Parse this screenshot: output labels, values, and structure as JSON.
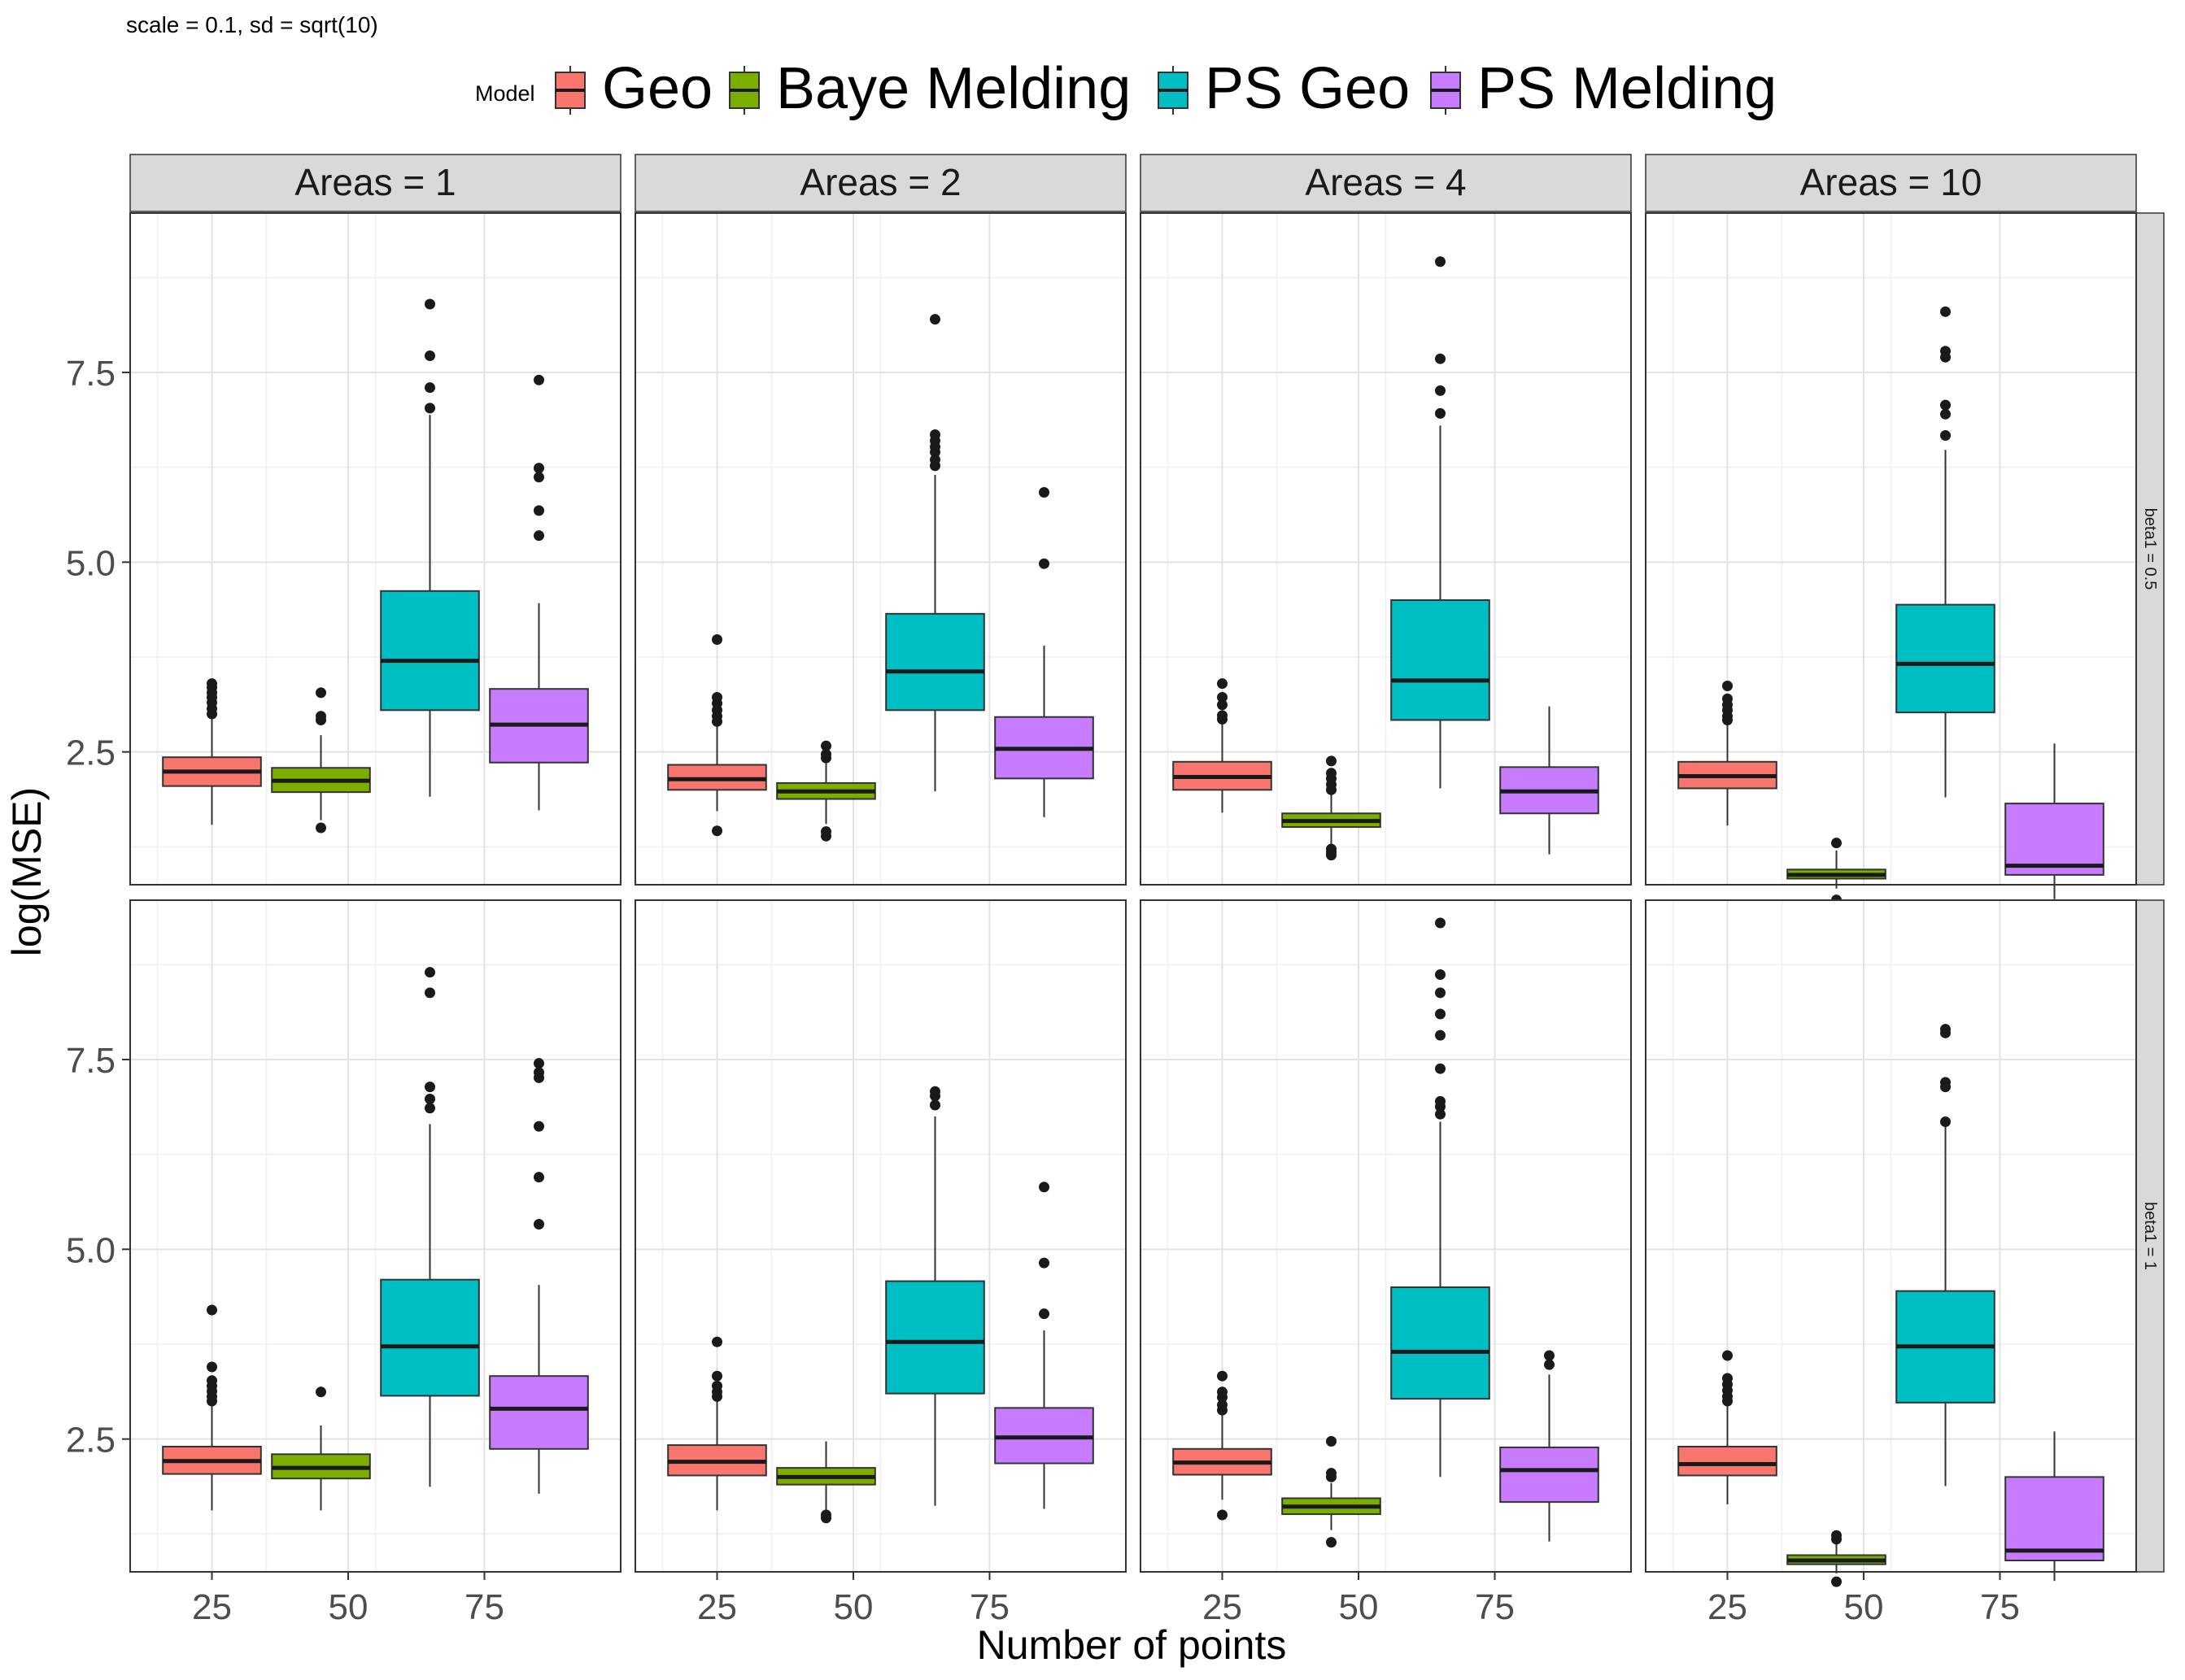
{
  "subtitle": "scale = 0.1, sd  = sqrt(10)",
  "legend": {
    "title": "Model",
    "entries": [
      {
        "label": "Geo",
        "color": "#F8766D"
      },
      {
        "label": "Baye Melding",
        "color": "#7CAE00"
      },
      {
        "label": "PS Geo",
        "color": "#00BFC4"
      },
      {
        "label": "PS Melding",
        "color": "#C77CFF"
      }
    ]
  },
  "chart_data": {
    "type": "boxplot",
    "subtitle": "scale = 0.1, sd  = sqrt(10)",
    "xlabel": "Number of points",
    "ylabel": "log(MSE)",
    "x_ticks": [
      "25",
      "50",
      "75"
    ],
    "y_ticks": [
      "2.5",
      "5.0",
      "7.5"
    ],
    "ylim": [
      0.75,
      9.6
    ],
    "xlim": [
      10,
      100
    ],
    "grid": true,
    "legend_position": "top",
    "box_positions": [
      25,
      45,
      65,
      85
    ],
    "facet_cols": [
      "Areas = 1",
      "Areas = 2",
      "Areas = 4",
      "Areas = 10"
    ],
    "facet_rows": [
      "beta1 = 0.5",
      "beta1 = 1"
    ],
    "series": [
      "Geo",
      "Baye Melding",
      "PS Geo",
      "PS Melding"
    ],
    "panels": [
      {
        "row": "beta1 = 0.5",
        "col": "Areas = 1",
        "boxes": [
          {
            "series": "Geo",
            "q1": 2.05,
            "median": 2.24,
            "q3": 2.43,
            "whisker_low": 1.54,
            "whisker_high": 2.96,
            "outliers": [
              3.0,
              3.07,
              3.15,
              3.22,
              3.28,
              3.35,
              3.4
            ]
          },
          {
            "series": "Baye Melding",
            "q1": 1.97,
            "median": 2.12,
            "q3": 2.29,
            "whisker_low": 1.6,
            "whisker_high": 2.72,
            "outliers": [
              1.5,
              2.92,
              2.97,
              3.28
            ]
          },
          {
            "series": "PS Geo",
            "q1": 3.05,
            "median": 3.7,
            "q3": 4.62,
            "whisker_low": 1.91,
            "whisker_high": 6.94,
            "outliers": [
              7.03,
              7.3,
              7.72,
              8.4
            ]
          },
          {
            "series": "PS Melding",
            "q1": 2.36,
            "median": 2.86,
            "q3": 3.33,
            "whisker_low": 1.73,
            "whisker_high": 4.46,
            "outliers": [
              5.35,
              5.68,
              6.12,
              6.24,
              7.4
            ]
          }
        ]
      },
      {
        "row": "beta1 = 0.5",
        "col": "Areas = 2",
        "boxes": [
          {
            "series": "Geo",
            "q1": 2.0,
            "median": 2.14,
            "q3": 2.33,
            "whisker_low": 1.72,
            "whisker_high": 2.84,
            "outliers": [
              1.46,
              2.9,
              2.97,
              3.05,
              3.14,
              3.22,
              3.98
            ]
          },
          {
            "series": "Baye Melding",
            "q1": 1.88,
            "median": 1.98,
            "q3": 2.09,
            "whisker_low": 1.55,
            "whisker_high": 2.35,
            "outliers": [
              1.39,
              1.45,
              2.42,
              2.47,
              2.58
            ]
          },
          {
            "series": "PS Geo",
            "q1": 3.05,
            "median": 3.56,
            "q3": 4.32,
            "whisker_low": 1.98,
            "whisker_high": 6.15,
            "outliers": [
              6.27,
              6.35,
              6.45,
              6.52,
              6.6,
              6.68,
              8.2
            ]
          },
          {
            "series": "PS Melding",
            "q1": 2.15,
            "median": 2.54,
            "q3": 2.96,
            "whisker_low": 1.64,
            "whisker_high": 3.9,
            "outliers": [
              4.98,
              5.92
            ]
          }
        ]
      },
      {
        "row": "beta1 = 0.5",
        "col": "Areas = 4",
        "boxes": [
          {
            "series": "Geo",
            "q1": 2.0,
            "median": 2.17,
            "q3": 2.37,
            "whisker_low": 1.7,
            "whisker_high": 2.88,
            "outliers": [
              2.93,
              2.98,
              3.12,
              3.22,
              3.4
            ]
          },
          {
            "series": "Baye Melding",
            "q1": 1.51,
            "median": 1.59,
            "q3": 1.69,
            "whisker_low": 1.28,
            "whisker_high": 1.96,
            "outliers": [
              1.14,
              1.18,
              1.22,
              2.0,
              2.07,
              2.15,
              2.22,
              2.38
            ]
          },
          {
            "series": "PS Geo",
            "q1": 2.92,
            "median": 3.44,
            "q3": 4.5,
            "whisker_low": 2.02,
            "whisker_high": 6.8,
            "outliers": [
              6.96,
              7.26,
              7.68,
              8.96
            ]
          },
          {
            "series": "PS Melding",
            "q1": 1.69,
            "median": 1.98,
            "q3": 2.3,
            "whisker_low": 1.15,
            "whisker_high": 3.1,
            "outliers": []
          }
        ]
      },
      {
        "row": "beta1 = 0.5",
        "col": "Areas = 10",
        "boxes": [
          {
            "series": "Geo",
            "q1": 2.02,
            "median": 2.18,
            "q3": 2.37,
            "whisker_low": 1.53,
            "whisker_high": 2.88,
            "outliers": [
              2.92,
              2.97,
              3.05,
              3.12,
              3.2,
              3.37
            ]
          },
          {
            "series": "Baye Melding",
            "q1": 0.83,
            "median": 0.88,
            "q3": 0.95,
            "whisker_low": 0.7,
            "whisker_high": 1.2,
            "outliers": [
              0.55,
              1.3
            ]
          },
          {
            "series": "PS Geo",
            "q1": 3.02,
            "median": 3.66,
            "q3": 4.44,
            "whisker_low": 1.9,
            "whisker_high": 6.48,
            "outliers": [
              6.67,
              6.95,
              7.07,
              7.7,
              7.78,
              8.3
            ]
          },
          {
            "series": "PS Melding",
            "q1": 0.88,
            "median": 1.0,
            "q3": 1.82,
            "whisker_low": 0.56,
            "whisker_high": 2.61,
            "outliers": []
          }
        ]
      },
      {
        "row": "beta1 = 1",
        "col": "Areas = 1",
        "boxes": [
          {
            "series": "Geo",
            "q1": 2.04,
            "median": 2.21,
            "q3": 2.4,
            "whisker_low": 1.56,
            "whisker_high": 2.96,
            "outliers": [
              3.0,
              3.06,
              3.13,
              3.2,
              3.27,
              3.45,
              4.2
            ]
          },
          {
            "series": "Baye Melding",
            "q1": 1.98,
            "median": 2.12,
            "q3": 2.3,
            "whisker_low": 1.56,
            "whisker_high": 2.68,
            "outliers": [
              3.12
            ]
          },
          {
            "series": "PS Geo",
            "q1": 3.07,
            "median": 3.72,
            "q3": 4.6,
            "whisker_low": 1.87,
            "whisker_high": 6.65,
            "outliers": [
              6.86,
              6.98,
              7.14,
              8.38,
              8.65
            ]
          },
          {
            "series": "PS Melding",
            "q1": 2.37,
            "median": 2.9,
            "q3": 3.33,
            "whisker_low": 1.78,
            "whisker_high": 4.53,
            "outliers": [
              5.33,
              5.95,
              6.62,
              7.26,
              7.33,
              7.45
            ]
          }
        ]
      },
      {
        "row": "beta1 = 1",
        "col": "Areas = 2",
        "boxes": [
          {
            "series": "Geo",
            "q1": 2.02,
            "median": 2.2,
            "q3": 2.42,
            "whisker_low": 1.56,
            "whisker_high": 3.02,
            "outliers": [
              3.06,
              3.12,
              3.2,
              3.33,
              3.78
            ]
          },
          {
            "series": "Baye Melding",
            "q1": 1.9,
            "median": 2.0,
            "q3": 2.12,
            "whisker_low": 1.54,
            "whisker_high": 2.47,
            "outliers": [
              1.46,
              1.5
            ]
          },
          {
            "series": "PS Geo",
            "q1": 3.1,
            "median": 3.78,
            "q3": 4.58,
            "whisker_low": 1.62,
            "whisker_high": 6.75,
            "outliers": [
              6.9,
              7.02,
              7.08
            ]
          },
          {
            "series": "PS Melding",
            "q1": 2.18,
            "median": 2.52,
            "q3": 2.91,
            "whisker_low": 1.58,
            "whisker_high": 3.93,
            "outliers": [
              4.15,
              4.82,
              5.82
            ]
          }
        ]
      },
      {
        "row": "beta1 = 1",
        "col": "Areas = 4",
        "boxes": [
          {
            "series": "Geo",
            "q1": 2.03,
            "median": 2.19,
            "q3": 2.37,
            "whisker_low": 1.7,
            "whisker_high": 2.82,
            "outliers": [
              1.5,
              2.88,
              2.95,
              3.05,
              3.12,
              3.33
            ]
          },
          {
            "series": "Baye Melding",
            "q1": 1.51,
            "median": 1.61,
            "q3": 1.72,
            "whisker_low": 1.3,
            "whisker_high": 1.92,
            "outliers": [
              1.14,
              2.0,
              2.05,
              2.47
            ]
          },
          {
            "series": "PS Geo",
            "q1": 3.03,
            "median": 3.65,
            "q3": 4.5,
            "whisker_low": 2.0,
            "whisker_high": 6.68,
            "outliers": [
              6.78,
              6.88,
              6.95,
              7.38,
              7.82,
              8.1,
              8.38,
              8.62,
              9.3
            ]
          },
          {
            "series": "PS Melding",
            "q1": 1.67,
            "median": 2.09,
            "q3": 2.39,
            "whisker_low": 1.15,
            "whisker_high": 3.35,
            "outliers": [
              3.48,
              3.6
            ]
          }
        ]
      },
      {
        "row": "beta1 = 1",
        "col": "Areas = 10",
        "boxes": [
          {
            "series": "Geo",
            "q1": 2.02,
            "median": 2.17,
            "q3": 2.4,
            "whisker_low": 1.64,
            "whisker_high": 2.94,
            "outliers": [
              3.0,
              3.06,
              3.14,
              3.22,
              3.3,
              3.6
            ]
          },
          {
            "series": "Baye Melding",
            "q1": 0.85,
            "median": 0.9,
            "q3": 0.97,
            "whisker_low": 0.73,
            "whisker_high": 1.13,
            "outliers": [
              0.62,
              1.18,
              1.23
            ]
          },
          {
            "series": "PS Geo",
            "q1": 2.98,
            "median": 3.72,
            "q3": 4.45,
            "whisker_low": 1.88,
            "whisker_high": 6.65,
            "outliers": [
              6.68,
              7.14,
              7.2,
              7.85,
              7.9
            ]
          },
          {
            "series": "PS Melding",
            "q1": 0.9,
            "median": 1.03,
            "q3": 2.0,
            "whisker_low": 0.63,
            "whisker_high": 2.6,
            "outliers": []
          }
        ]
      }
    ]
  }
}
